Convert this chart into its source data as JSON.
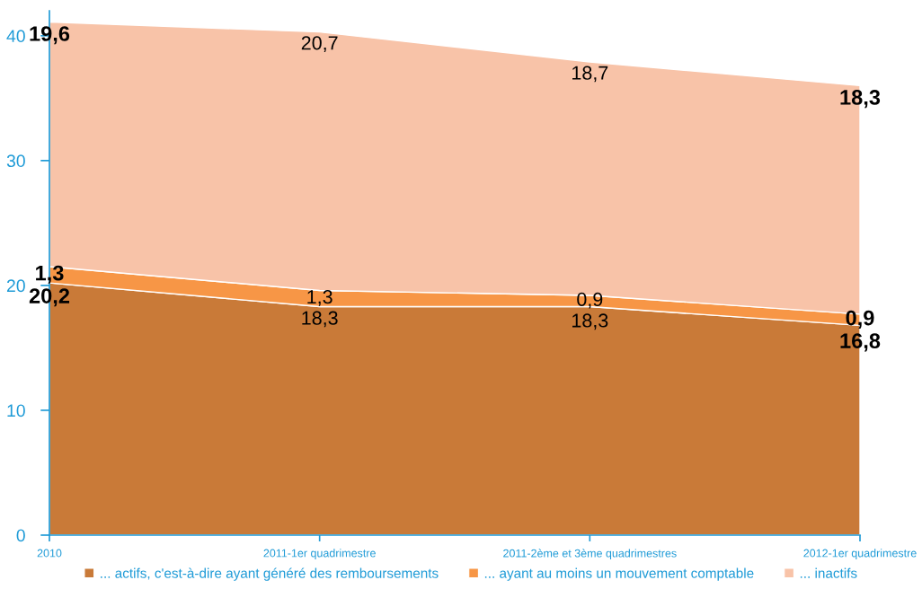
{
  "chart_data": {
    "type": "area",
    "stacked": true,
    "categories": [
      "2010",
      "2011-1er quadrimestre",
      "2011-2ème et 3ème quadrimestres",
      "2012-1er quadrimestre"
    ],
    "ylim": [
      0,
      42
    ],
    "yticks": [
      0,
      10,
      20,
      30,
      40
    ],
    "legend": "bottom",
    "series": [
      {
        "name": "... actifs, c'est-à-dire ayant généré des remboursements",
        "color": "#c97a38",
        "values": [
          20.2,
          18.3,
          18.3,
          16.8
        ],
        "value_labels": [
          "20,2",
          "18,3",
          "18,3",
          "16,8"
        ]
      },
      {
        "name": "... ayant au moins un mouvement comptable",
        "color": "#f79646",
        "values": [
          1.3,
          1.3,
          0.9,
          0.9
        ],
        "value_labels": [
          "1,3",
          "1,3",
          "0,9",
          "0,9"
        ]
      },
      {
        "name": "... inactifs",
        "color": "#f8c3a8",
        "values": [
          19.6,
          20.7,
          18.7,
          18.3
        ],
        "value_labels": [
          "19,6",
          "20,7",
          "18,7",
          "18,3"
        ]
      }
    ]
  }
}
